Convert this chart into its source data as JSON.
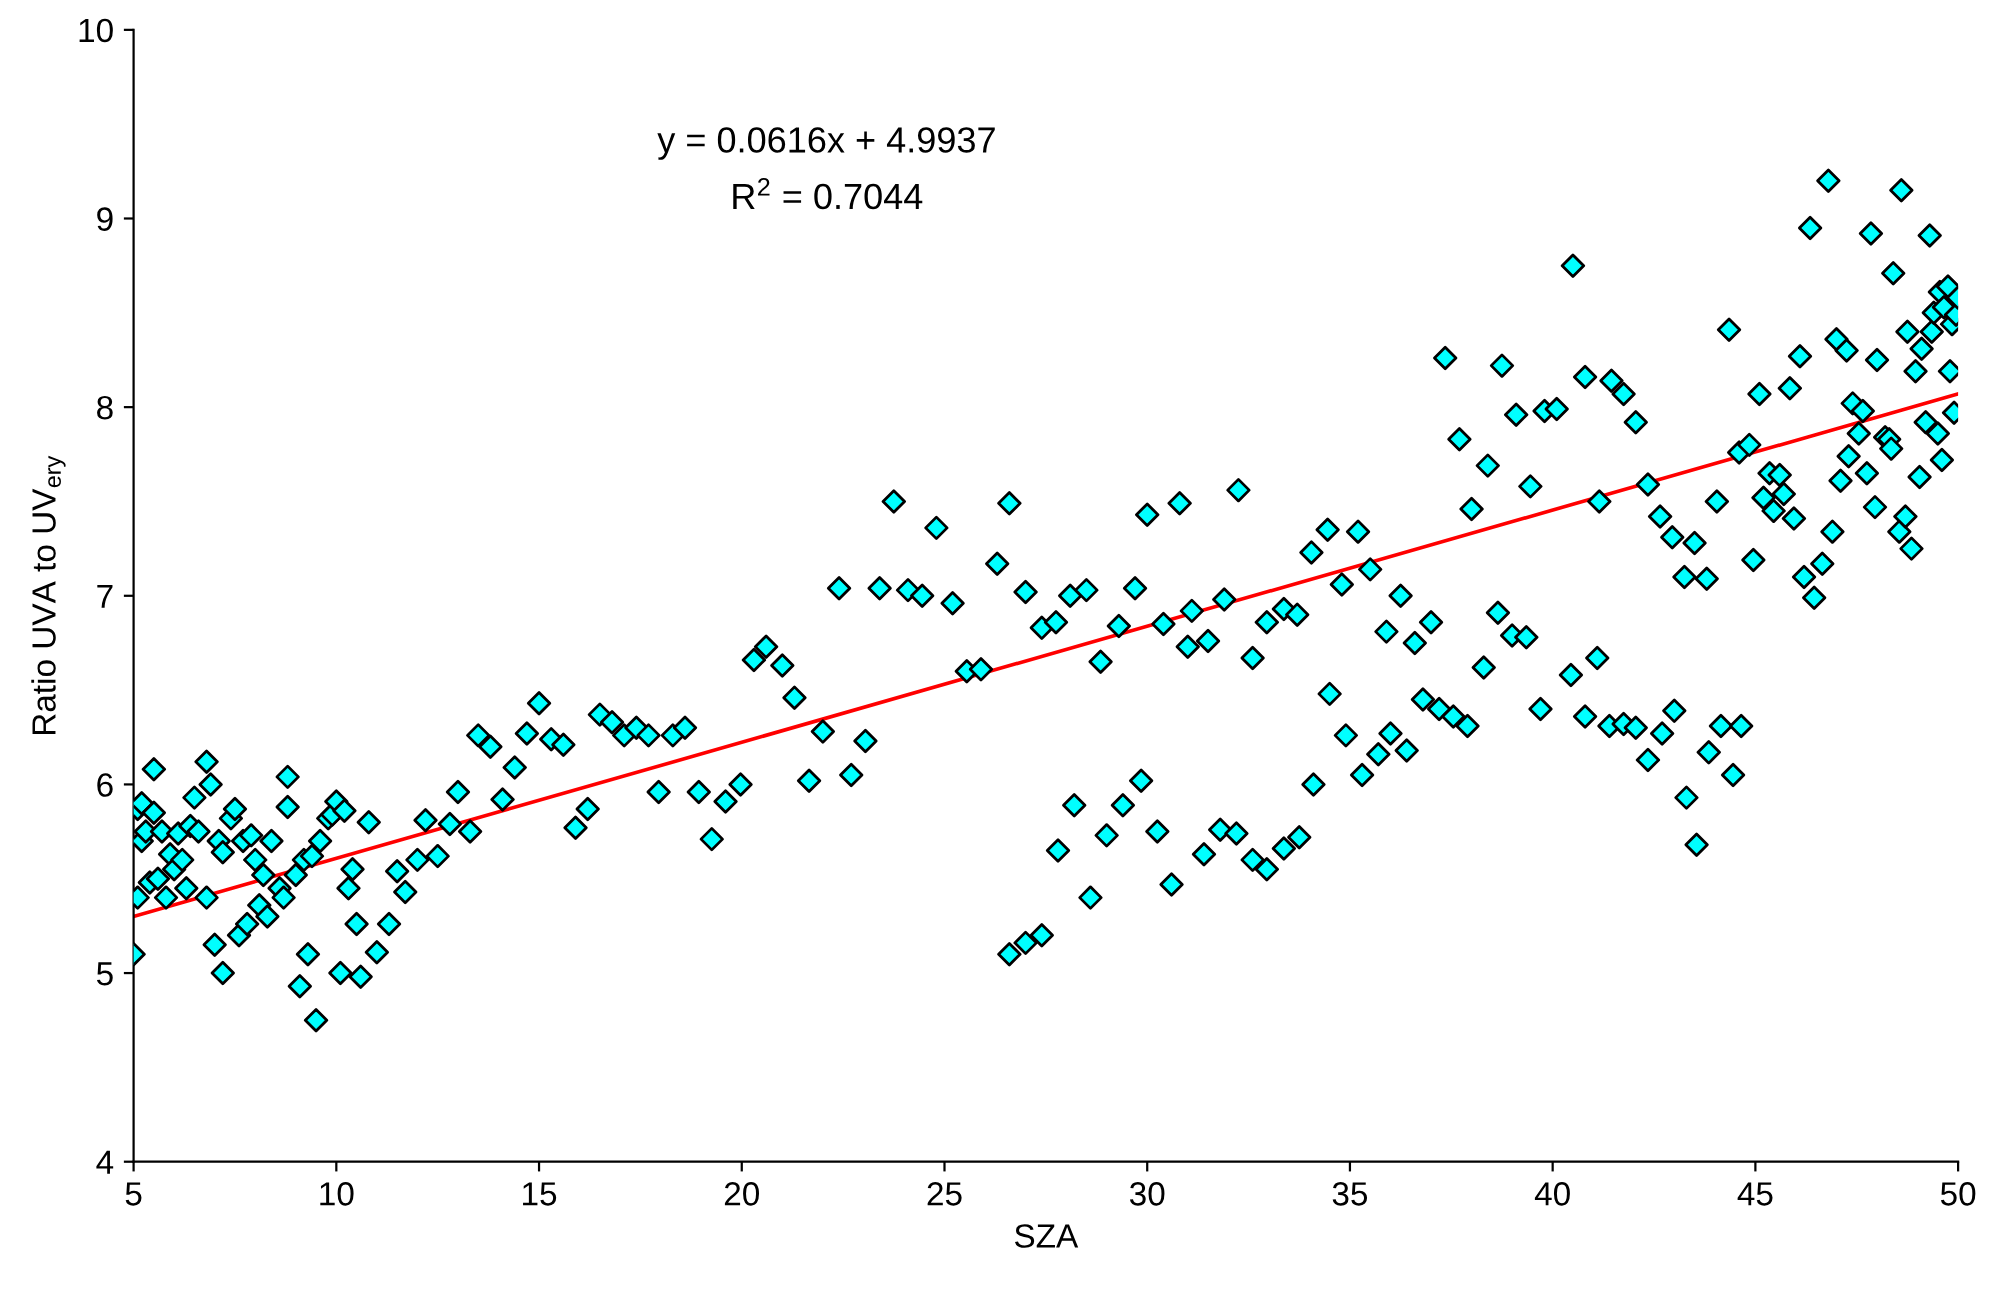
{
  "chart_data": {
    "type": "scatter",
    "xlabel": "SZA",
    "ylabel": "Ratio UVA to UV$_{ery}$",
    "xlim": [
      5,
      50
    ],
    "xticks": [
      5,
      10,
      15,
      20,
      25,
      30,
      35,
      40,
      45,
      50
    ],
    "ylim": [
      4,
      10
    ],
    "yticks": [
      4,
      5,
      6,
      7,
      8,
      9,
      10
    ],
    "grid": false,
    "legend": false,
    "marker": "diamond",
    "annotations": [
      "y = 0.0616x + 4.9937",
      "R$^{2}$ = 0.7044"
    ],
    "series": [
      {
        "color": "#00ffff",
        "x": [
          5.0,
          5.1,
          5.1,
          5.2,
          5.2,
          5.3,
          5.4,
          5.5,
          5.5,
          5.6,
          5.7,
          5.8,
          5.9,
          6.0,
          6.1,
          6.2,
          6.3,
          6.4,
          6.5,
          6.6,
          6.8,
          6.8,
          6.9,
          7.0,
          7.1,
          7.2,
          7.2,
          7.4,
          7.5,
          7.6,
          7.7,
          7.8,
          7.9,
          8.0,
          8.1,
          8.2,
          8.3,
          8.4,
          8.6,
          8.7,
          8.8,
          8.8,
          9.0,
          9.1,
          9.2,
          9.3,
          9.4,
          9.5,
          9.6,
          9.8,
          9.9,
          10.0,
          10.1,
          10.2,
          10.3,
          10.4,
          10.5,
          10.6,
          10.8,
          11.0,
          11.3,
          11.5,
          11.7,
          12.0,
          12.2,
          12.5,
          12.8,
          13.0,
          13.3,
          13.5,
          13.8,
          14.1,
          14.4,
          14.7,
          15.0,
          15.3,
          15.6,
          15.9,
          16.2,
          16.5,
          16.8,
          17.1,
          17.4,
          17.7,
          17.95,
          18.3,
          18.6,
          18.94,
          19.26,
          19.6,
          19.97,
          20.3,
          20.6,
          21.0,
          21.3,
          21.66,
          22.0,
          22.4,
          22.7,
          23.05,
          23.4,
          23.75,
          24.1,
          24.45,
          24.8,
          25.2,
          25.55,
          25.9,
          26.3,
          26.6,
          26.6,
          27.0,
          27.0,
          27.4,
          27.4,
          27.75,
          27.8,
          28.1,
          28.2,
          28.5,
          28.6,
          28.85,
          29.0,
          29.3,
          29.4,
          29.7,
          29.85,
          30.0,
          30.25,
          30.4,
          30.6,
          30.8,
          31.0,
          31.1,
          31.4,
          31.5,
          31.8,
          31.9,
          32.2,
          32.25,
          32.6,
          32.6,
          32.95,
          32.95,
          33.37,
          33.37,
          33.75,
          33.7,
          34.1,
          34.05,
          34.45,
          34.5,
          34.8,
          34.9,
          35.2,
          35.3,
          35.5,
          35.7,
          36.0,
          35.9,
          36.25,
          36.4,
          36.6,
          36.8,
          37.0,
          37.2,
          37.35,
          37.55,
          37.7,
          37.9,
          38.0,
          38.3,
          38.4,
          38.65,
          38.75,
          39.0,
          39.1,
          39.35,
          39.45,
          39.7,
          39.8,
          40.1,
          40.45,
          40.5,
          40.8,
          40.8,
          41.1,
          41.15,
          41.4,
          41.45,
          41.75,
          41.75,
          42.05,
          42.05,
          42.35,
          42.35,
          42.65,
          42.7,
          42.95,
          43.0,
          43.25,
          43.3,
          43.5,
          43.55,
          43.8,
          43.85,
          44.05,
          44.15,
          44.35,
          44.45,
          44.6,
          44.65,
          44.85,
          44.95,
          45.1,
          45.2,
          45.35,
          45.45,
          45.6,
          45.7,
          45.85,
          45.95,
          46.1,
          46.2,
          46.35,
          46.45,
          46.65,
          46.8,
          46.9,
          47.0,
          47.1,
          47.25,
          47.3,
          47.4,
          47.55,
          47.65,
          47.75,
          47.85,
          47.95,
          48.0,
          48.2,
          48.3,
          48.35,
          48.4,
          48.55,
          48.6,
          48.7,
          48.75,
          48.85,
          48.95,
          49.05,
          49.1,
          49.2,
          49.3,
          49.35,
          49.4,
          49.5,
          49.55,
          49.6,
          49.65,
          49.75,
          49.8,
          49.85,
          49.9,
          49.95,
          50.0
        ],
        "values": [
          5.1,
          5.4,
          5.87,
          5.9,
          5.7,
          5.75,
          5.48,
          6.08,
          5.85,
          5.5,
          5.75,
          5.4,
          5.63,
          5.55,
          5.74,
          5.6,
          5.45,
          5.78,
          5.93,
          5.75,
          6.12,
          5.4,
          6.0,
          5.15,
          5.7,
          5.64,
          5.0,
          5.82,
          5.87,
          5.2,
          5.7,
          5.26,
          5.73,
          5.6,
          5.36,
          5.52,
          5.3,
          5.7,
          5.45,
          5.4,
          6.04,
          5.88,
          5.52,
          4.93,
          5.6,
          5.1,
          5.62,
          4.75,
          5.7,
          5.82,
          5.84,
          5.91,
          5.0,
          5.86,
          5.45,
          5.55,
          5.26,
          4.98,
          5.8,
          5.11,
          5.26,
          5.54,
          5.43,
          5.6,
          5.81,
          5.62,
          5.79,
          5.96,
          5.75,
          6.26,
          6.2,
          5.92,
          6.09,
          6.27,
          6.43,
          6.24,
          6.21,
          5.77,
          5.87,
          6.37,
          6.33,
          6.26,
          6.3,
          6.26,
          5.96,
          6.26,
          6.3,
          5.96,
          5.71,
          5.91,
          6.0,
          6.66,
          6.73,
          6.63,
          6.46,
          6.02,
          6.28,
          7.04,
          6.05,
          6.23,
          7.04,
          7.5,
          7.03,
          7.0,
          7.36,
          6.96,
          6.6,
          6.61,
          7.17,
          7.49,
          5.1,
          5.16,
          7.02,
          5.2,
          6.83,
          6.86,
          5.65,
          7.0,
          5.89,
          7.03,
          5.4,
          6.65,
          5.73,
          6.84,
          5.89,
          7.04,
          6.02,
          7.43,
          5.75,
          6.85,
          5.47,
          7.49,
          6.73,
          6.92,
          5.63,
          6.76,
          5.76,
          6.98,
          5.74,
          7.56,
          6.67,
          5.6,
          6.86,
          5.55,
          5.66,
          6.93,
          5.72,
          6.9,
          6.0,
          7.23,
          7.35,
          6.48,
          7.06,
          6.26,
          7.34,
          6.05,
          7.14,
          6.16,
          6.27,
          6.81,
          7.0,
          6.18,
          6.75,
          6.45,
          6.86,
          6.4,
          8.26,
          6.36,
          7.83,
          6.31,
          7.46,
          6.62,
          7.69,
          6.91,
          8.22,
          6.79,
          7.96,
          6.78,
          7.58,
          6.4,
          7.98,
          7.99,
          6.58,
          8.75,
          6.36,
          8.16,
          6.67,
          7.5,
          6.31,
          8.14,
          6.32,
          8.07,
          6.3,
          7.92,
          7.59,
          6.13,
          7.42,
          6.27,
          7.31,
          6.39,
          7.1,
          5.93,
          7.28,
          5.68,
          7.09,
          6.17,
          7.5,
          6.31,
          8.41,
          6.05,
          7.76,
          6.31,
          7.8,
          7.19,
          8.07,
          7.52,
          7.65,
          7.45,
          7.64,
          7.54,
          8.1,
          7.41,
          8.27,
          7.1,
          8.95,
          6.99,
          7.17,
          9.2,
          7.34,
          8.36,
          7.61,
          8.3,
          7.74,
          8.02,
          7.86,
          7.98,
          7.65,
          8.92,
          7.47,
          8.25,
          7.84,
          7.83,
          7.78,
          8.71,
          7.34,
          9.15,
          7.42,
          8.4,
          7.25,
          8.19,
          7.63,
          8.31,
          7.92,
          8.91,
          8.4,
          8.5,
          7.86,
          8.61,
          7.72,
          8.53,
          8.64,
          8.19,
          8.44,
          7.97,
          8.49,
          8.58
        ]
      },
      {
        "type": "line",
        "color": "#ff0000",
        "marker": "none",
        "x": [
          5,
          50
        ],
        "values": [
          5.3,
          8.07
        ]
      }
    ]
  }
}
